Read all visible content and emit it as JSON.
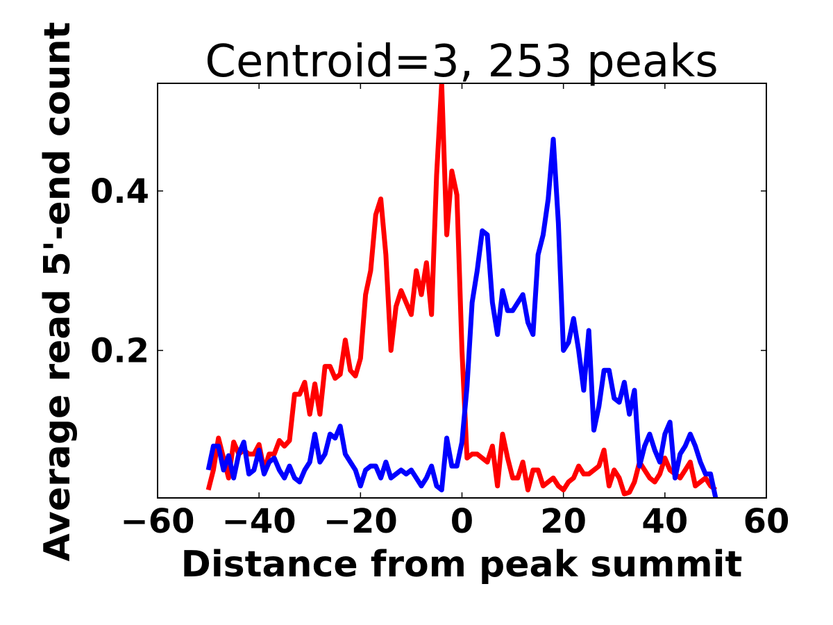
{
  "chart_data": {
    "type": "line",
    "title": "Centroid=3, 253 peaks",
    "xlabel": "Distance from peak summit",
    "ylabel": "Average read 5'-end count",
    "xlim": [
      -60,
      60
    ],
    "ylim": [
      0.015,
      0.535
    ],
    "xticks": [
      -60,
      -40,
      -20,
      0,
      20,
      40,
      60
    ],
    "xtick_labels": [
      "−60",
      "−40",
      "−20",
      "0",
      "20",
      "40",
      "60"
    ],
    "yticks": [
      0.2,
      0.4
    ],
    "ytick_labels": [
      "0.2",
      "0.4"
    ],
    "grid": false,
    "legend": "none",
    "x": [
      -50,
      -49,
      -48,
      -47,
      -46,
      -45,
      -44,
      -43,
      -42,
      -41,
      -40,
      -39,
      -38,
      -37,
      -36,
      -35,
      -34,
      -33,
      -32,
      -31,
      -30,
      -29,
      -28,
      -27,
      -26,
      -25,
      -24,
      -23,
      -22,
      -21,
      -20,
      -19,
      -18,
      -17,
      -16,
      -15,
      -14,
      -13,
      -12,
      -11,
      -10,
      -9,
      -8,
      -7,
      -6,
      -5,
      -4,
      -3,
      -2,
      -1,
      0,
      1,
      2,
      3,
      4,
      5,
      6,
      7,
      8,
      9,
      10,
      11,
      12,
      13,
      14,
      15,
      16,
      17,
      18,
      19,
      20,
      21,
      22,
      23,
      24,
      25,
      26,
      27,
      28,
      29,
      30,
      31,
      32,
      33,
      34,
      35,
      36,
      37,
      38,
      39,
      40,
      41,
      42,
      43,
      44,
      45,
      46,
      47,
      48,
      49,
      50
    ],
    "series": [
      {
        "color": "#ff0000",
        "values": [
          0.025,
          0.05,
          0.09,
          0.065,
          0.04,
          0.085,
          0.07,
          0.075,
          0.07,
          0.07,
          0.082,
          0.05,
          0.07,
          0.07,
          0.087,
          0.08,
          0.087,
          0.145,
          0.145,
          0.16,
          0.12,
          0.158,
          0.12,
          0.18,
          0.18,
          0.165,
          0.17,
          0.213,
          0.175,
          0.168,
          0.19,
          0.27,
          0.3,
          0.37,
          0.39,
          0.32,
          0.2,
          0.255,
          0.275,
          0.26,
          0.245,
          0.3,
          0.27,
          0.31,
          0.245,
          0.42,
          0.535,
          0.345,
          0.425,
          0.395,
          0.2,
          0.065,
          0.07,
          0.07,
          0.065,
          0.06,
          0.08,
          0.03,
          0.095,
          0.065,
          0.04,
          0.04,
          0.06,
          0.025,
          0.05,
          0.05,
          0.03,
          0.035,
          0.04,
          0.03,
          0.025,
          0.035,
          0.04,
          0.055,
          0.045,
          0.045,
          0.05,
          0.055,
          0.075,
          0.03,
          0.05,
          0.04,
          0.02,
          0.022,
          0.035,
          0.06,
          0.05,
          0.04,
          0.035,
          0.045,
          0.065,
          0.05,
          0.045,
          0.04,
          0.05,
          0.06,
          0.03,
          0.035,
          0.04,
          0.03,
          0.025
        ]
      },
      {
        "color": "#0000ff",
        "values": [
          0.05,
          0.08,
          0.08,
          0.05,
          0.068,
          0.04,
          0.07,
          0.085,
          0.045,
          0.05,
          0.075,
          0.045,
          0.06,
          0.065,
          0.05,
          0.04,
          0.055,
          0.04,
          0.035,
          0.05,
          0.06,
          0.095,
          0.06,
          0.07,
          0.095,
          0.09,
          0.105,
          0.07,
          0.06,
          0.05,
          0.03,
          0.05,
          0.055,
          0.055,
          0.04,
          0.06,
          0.04,
          0.045,
          0.05,
          0.045,
          0.05,
          0.04,
          0.03,
          0.04,
          0.055,
          0.03,
          0.025,
          0.09,
          0.055,
          0.055,
          0.085,
          0.155,
          0.26,
          0.3,
          0.35,
          0.345,
          0.26,
          0.22,
          0.275,
          0.25,
          0.25,
          0.26,
          0.27,
          0.235,
          0.22,
          0.32,
          0.345,
          0.39,
          0.465,
          0.36,
          0.2,
          0.21,
          0.24,
          0.2,
          0.15,
          0.225,
          0.1,
          0.13,
          0.175,
          0.175,
          0.14,
          0.135,
          0.16,
          0.12,
          0.15,
          0.055,
          0.08,
          0.095,
          0.075,
          0.06,
          0.095,
          0.11,
          0.04,
          0.07,
          0.08,
          0.095,
          0.08,
          0.06,
          0.045,
          0.045,
          0.015
        ]
      }
    ]
  }
}
